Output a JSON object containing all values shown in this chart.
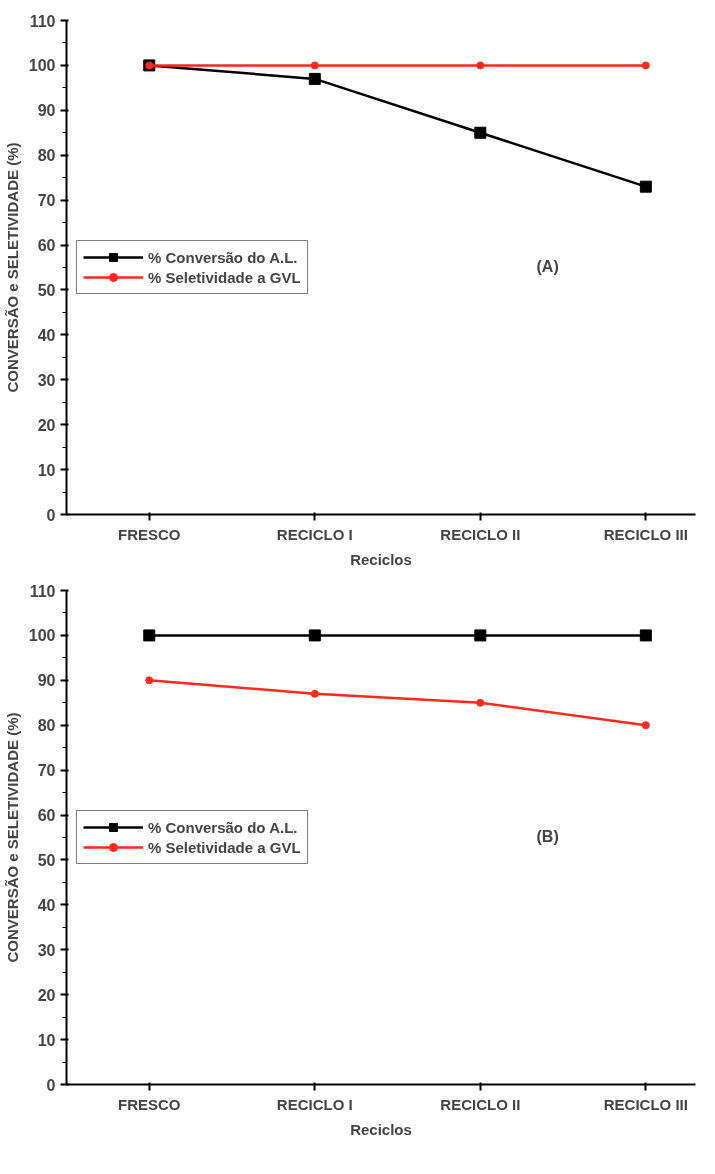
{
  "chart_data": [
    {
      "type": "line",
      "xlabel": "Reciclos",
      "ylabel": "CONVERSÃO e SELETIVIDADE (%)",
      "categories": [
        "FRESCO",
        "RECICLO I",
        "RECICLO II",
        "RECICLO III"
      ],
      "series": [
        {
          "name": "% Conversão do A.L.",
          "color": "#000000",
          "marker": "square",
          "values": [
            100,
            97,
            85,
            73
          ]
        },
        {
          "name": "% Seletividade a GVL",
          "color": "#ff2a1a",
          "marker": "circle",
          "values": [
            100,
            100,
            100,
            100
          ]
        }
      ],
      "ylim": [
        0,
        110
      ],
      "yticks": [
        0,
        10,
        20,
        30,
        40,
        50,
        60,
        70,
        80,
        90,
        100,
        110
      ],
      "legend": "left",
      "grid": false,
      "annotations": [
        "(A)"
      ]
    },
    {
      "type": "line",
      "xlabel": "Reciclos",
      "ylabel": "CONVERSÃO e SELETIVIDADE (%)",
      "categories": [
        "FRESCO",
        "RECICLO I",
        "RECICLO II",
        "RECICLO III"
      ],
      "series": [
        {
          "name": "% Conversão do A.L.",
          "color": "#000000",
          "marker": "square",
          "values": [
            100,
            100,
            100,
            100
          ]
        },
        {
          "name": "% Seletividade a GVL",
          "color": "#ff2a1a",
          "marker": "circle",
          "values": [
            90,
            87,
            85,
            80
          ]
        }
      ],
      "ylim": [
        0,
        110
      ],
      "yticks": [
        0,
        10,
        20,
        30,
        40,
        50,
        60,
        70,
        80,
        90,
        100,
        110
      ],
      "legend": "left",
      "grid": false,
      "annotations": [
        "(B)"
      ]
    }
  ]
}
